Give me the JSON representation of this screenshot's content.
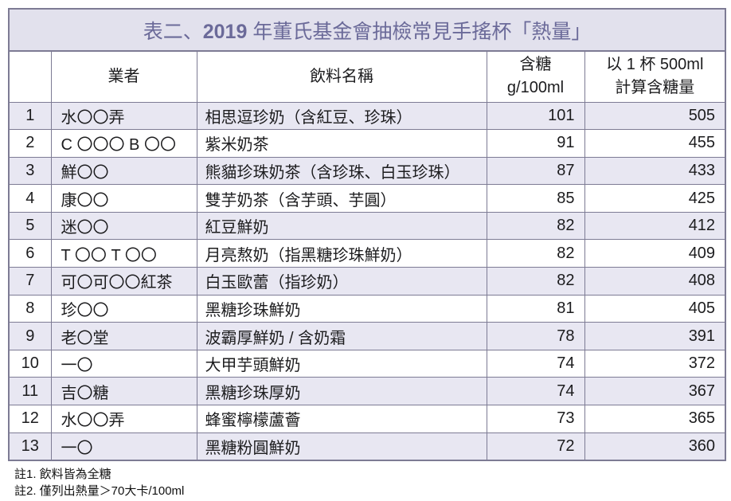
{
  "title": {
    "prefix": "表二、",
    "year": "2019",
    "suffix": " 年董氏基金會抽檢常見手搖杯「熱量」"
  },
  "table": {
    "headers": {
      "no": "",
      "vendor": "業者",
      "drink": "飲料名稱",
      "sugar": [
        "含糖",
        "g/100ml"
      ],
      "per_cup": [
        "以 1 杯 500ml",
        "計算含糖量"
      ]
    },
    "rows": [
      {
        "no": "1",
        "vendor": "水〇〇弄",
        "drink": "相思逗珍奶（含紅豆、珍珠）",
        "sugar": "101",
        "per_cup": "505"
      },
      {
        "no": "2",
        "vendor": "C 〇〇〇 B 〇〇",
        "drink": "紫米奶茶",
        "sugar": "91",
        "per_cup": "455"
      },
      {
        "no": "3",
        "vendor": "鮮〇〇",
        "drink": "熊貓珍珠奶茶（含珍珠、白玉珍珠）",
        "sugar": "87",
        "per_cup": "433"
      },
      {
        "no": "4",
        "vendor": "康〇〇",
        "drink": "雙芋奶茶（含芋頭、芋圓）",
        "sugar": "85",
        "per_cup": "425"
      },
      {
        "no": "5",
        "vendor": "迷〇〇",
        "drink": "紅豆鮮奶",
        "sugar": "82",
        "per_cup": "412"
      },
      {
        "no": "6",
        "vendor": "T 〇〇 T 〇〇",
        "drink": "月亮熬奶（指黑糖珍珠鮮奶）",
        "sugar": "82",
        "per_cup": "409"
      },
      {
        "no": "7",
        "vendor": "可〇可〇〇紅茶",
        "drink": "白玉歐蕾（指珍奶）",
        "sugar": "82",
        "per_cup": "408"
      },
      {
        "no": "8",
        "vendor": "珍〇〇",
        "drink": "黑糖珍珠鮮奶",
        "sugar": "81",
        "per_cup": "405"
      },
      {
        "no": "9",
        "vendor": "老〇堂",
        "drink": "波霸厚鮮奶 / 含奶霜",
        "sugar": "78",
        "per_cup": "391"
      },
      {
        "no": "10",
        "vendor": "一〇",
        "drink": "大甲芋頭鮮奶",
        "sugar": "74",
        "per_cup": "372"
      },
      {
        "no": "11",
        "vendor": "吉〇糖",
        "drink": "黑糖珍珠厚奶",
        "sugar": "74",
        "per_cup": "367"
      },
      {
        "no": "12",
        "vendor": "水〇〇弄",
        "drink": "蜂蜜檸檬蘆薈",
        "sugar": "73",
        "per_cup": "365"
      },
      {
        "no": "13",
        "vendor": "一〇",
        "drink": "黑糖粉圓鮮奶",
        "sugar": "72",
        "per_cup": "360"
      }
    ]
  },
  "notes": [
    "註1. 飲料皆為全糖",
    "註2. 僅列出熱量＞70大卡/100ml"
  ],
  "colors": {
    "title_bg": "#e2e1ed",
    "row_alt_bg": "#e8e7f2",
    "border": "#7d7b94",
    "title_text": "#6b6a99",
    "body_text": "#1c1c1e"
  }
}
